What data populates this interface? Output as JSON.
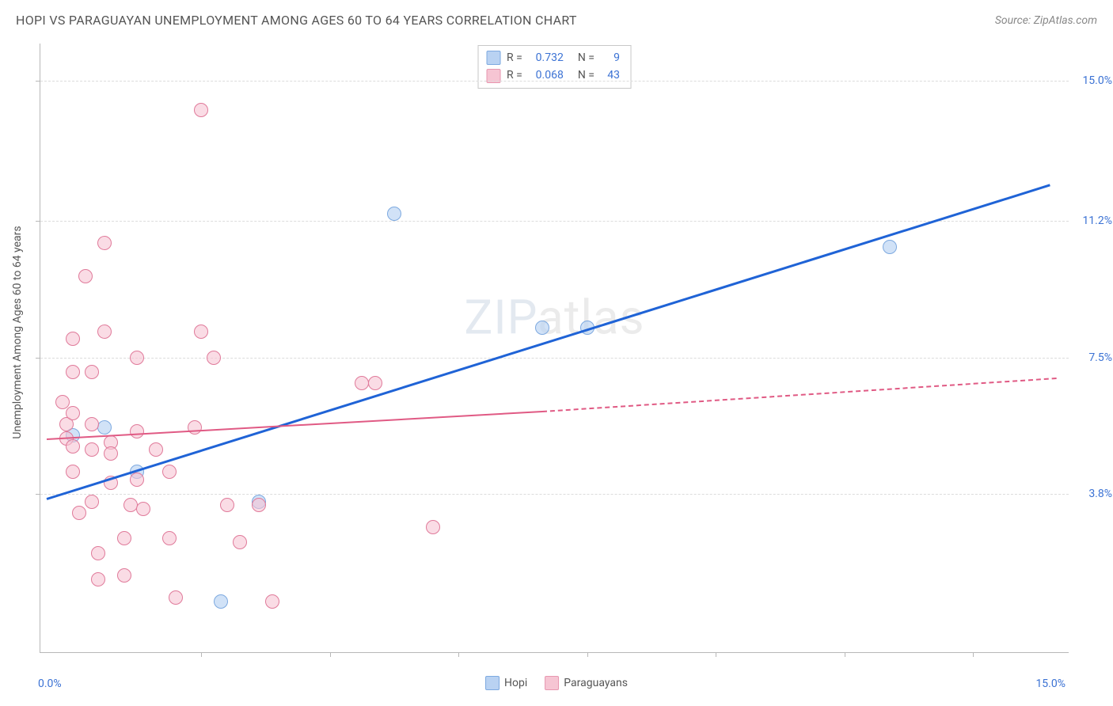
{
  "header": {
    "title": "HOPI VS PARAGUAYAN UNEMPLOYMENT AMONG AGES 60 TO 64 YEARS CORRELATION CHART",
    "source": "Source: ZipAtlas.com"
  },
  "axes": {
    "y_label": "Unemployment Among Ages 60 to 64 years",
    "x_origin": "0.0%",
    "x_max": "15.0%",
    "x_domain": [
      -0.5,
      15.5
    ],
    "y_domain": [
      -0.5,
      16.0
    ],
    "y_ticks": [
      {
        "v": 3.8,
        "label": "3.8%"
      },
      {
        "v": 7.5,
        "label": "7.5%"
      },
      {
        "v": 11.2,
        "label": "11.2%"
      },
      {
        "v": 15.0,
        "label": "15.0%"
      }
    ],
    "y_tick_color": "#3b72d4",
    "grid_color": "#dcdcdc",
    "x_tick_positions": [
      2,
      4,
      6,
      8,
      10,
      12,
      14
    ]
  },
  "watermark": {
    "prefix": "ZIP",
    "suffix": "atlas"
  },
  "legend_top": [
    {
      "color_fill": "#b9d2f2",
      "color_border": "#7da9e0",
      "r_label": "R  =",
      "r_val": "0.732",
      "n_label": "N  =",
      "n_val": "9"
    },
    {
      "color_fill": "#f6c5d3",
      "color_border": "#e797b0",
      "r_label": "R  =",
      "r_val": "0.068",
      "n_label": "N  =",
      "n_val": "43"
    }
  ],
  "legend_bottom": [
    {
      "color_fill": "#b9d2f2",
      "color_border": "#7da9e0",
      "label": "Hopi"
    },
    {
      "color_fill": "#f6c5d3",
      "color_border": "#e797b0",
      "label": "Paraguayans"
    }
  ],
  "series": [
    {
      "name": "Hopi",
      "marker_fill": "rgba(185,210,242,0.65)",
      "marker_stroke": "#7da9e0",
      "marker_r": 9,
      "trend_color": "#1f63d6",
      "trend_width": 3,
      "trend_from": {
        "x": -0.4,
        "y": 3.7
      },
      "trend_to": {
        "x": 15.2,
        "y": 12.2
      },
      "points": [
        {
          "x": 0.0,
          "y": 5.4
        },
        {
          "x": 0.5,
          "y": 5.6
        },
        {
          "x": 1.0,
          "y": 4.4
        },
        {
          "x": 2.3,
          "y": 0.9
        },
        {
          "x": 2.9,
          "y": 3.6
        },
        {
          "x": 5.0,
          "y": 11.4
        },
        {
          "x": 7.3,
          "y": 8.3
        },
        {
          "x": 8.0,
          "y": 8.3
        },
        {
          "x": 12.7,
          "y": 10.5
        }
      ]
    },
    {
      "name": "Paraguayans",
      "marker_fill": "rgba(246,197,211,0.6)",
      "marker_stroke": "#e07a9a",
      "marker_r": 9,
      "trend_color": "#e05a84",
      "trend_width": 2,
      "trend_from": {
        "x": -0.4,
        "y": 5.3
      },
      "trend_to": {
        "x": 7.3,
        "y": 6.05
      },
      "trend_dashed_to": {
        "x": 15.3,
        "y": 6.95
      },
      "points": [
        {
          "x": -0.15,
          "y": 6.3
        },
        {
          "x": -0.1,
          "y": 5.7
        },
        {
          "x": -0.1,
          "y": 5.3
        },
        {
          "x": 0.0,
          "y": 8.0
        },
        {
          "x": 0.0,
          "y": 7.1
        },
        {
          "x": 0.0,
          "y": 6.0
        },
        {
          "x": 0.0,
          "y": 5.1
        },
        {
          "x": 0.0,
          "y": 4.4
        },
        {
          "x": 0.1,
          "y": 3.3
        },
        {
          "x": 0.2,
          "y": 9.7
        },
        {
          "x": 0.3,
          "y": 7.1
        },
        {
          "x": 0.3,
          "y": 5.7
        },
        {
          "x": 0.3,
          "y": 5.0
        },
        {
          "x": 0.3,
          "y": 3.6
        },
        {
          "x": 0.4,
          "y": 2.2
        },
        {
          "x": 0.4,
          "y": 1.5
        },
        {
          "x": 0.5,
          "y": 10.6
        },
        {
          "x": 0.5,
          "y": 8.2
        },
        {
          "x": 0.6,
          "y": 5.2
        },
        {
          "x": 0.6,
          "y": 4.9
        },
        {
          "x": 0.6,
          "y": 4.1
        },
        {
          "x": 0.8,
          "y": 1.6
        },
        {
          "x": 0.8,
          "y": 2.6
        },
        {
          "x": 0.9,
          "y": 3.5
        },
        {
          "x": 1.0,
          "y": 7.5
        },
        {
          "x": 1.0,
          "y": 5.5
        },
        {
          "x": 1.0,
          "y": 4.2
        },
        {
          "x": 1.1,
          "y": 3.4
        },
        {
          "x": 1.3,
          "y": 5.0
        },
        {
          "x": 1.5,
          "y": 4.4
        },
        {
          "x": 1.5,
          "y": 2.6
        },
        {
          "x": 1.6,
          "y": 1.0
        },
        {
          "x": 1.9,
          "y": 5.6
        },
        {
          "x": 2.0,
          "y": 14.2
        },
        {
          "x": 2.0,
          "y": 8.2
        },
        {
          "x": 2.2,
          "y": 7.5
        },
        {
          "x": 2.4,
          "y": 3.5
        },
        {
          "x": 2.6,
          "y": 2.5
        },
        {
          "x": 2.9,
          "y": 3.5
        },
        {
          "x": 3.1,
          "y": 0.9
        },
        {
          "x": 4.5,
          "y": 6.8
        },
        {
          "x": 4.7,
          "y": 6.8
        },
        {
          "x": 5.6,
          "y": 2.9
        }
      ]
    }
  ]
}
